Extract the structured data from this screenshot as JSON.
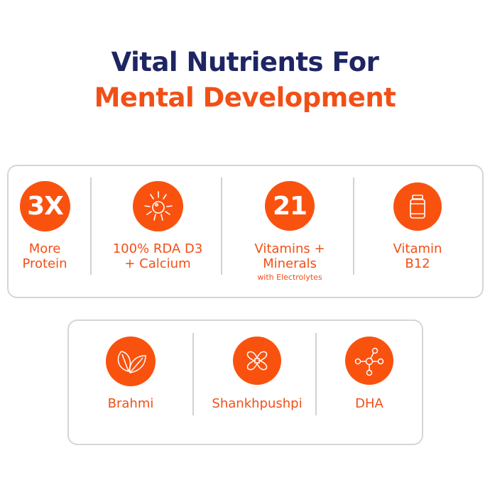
{
  "header": {
    "line1": "Vital Nutrients For",
    "line2": "Mental Development"
  },
  "colors": {
    "navy": "#1e2563",
    "orange": "#f9520f",
    "border": "#d6d6d6"
  },
  "row1": [
    {
      "icon_text": "3X",
      "label_lines": [
        "More",
        "Protein"
      ]
    },
    {
      "icon": "sun-icon",
      "label_lines": [
        "100% RDA D3",
        "+ Calcium"
      ]
    },
    {
      "icon_text": "21",
      "label_lines": [
        "Vitamins +",
        "Minerals"
      ],
      "sublabel": "with Electrolytes"
    },
    {
      "icon": "bottle-icon",
      "label_lines": [
        "Vitamin",
        "B12"
      ]
    }
  ],
  "row2": [
    {
      "icon": "leaves-icon",
      "label": "Brahmi"
    },
    {
      "icon": "flower-icon",
      "label": "Shankhpushpi"
    },
    {
      "icon": "molecule-icon",
      "label": "DHA"
    }
  ]
}
